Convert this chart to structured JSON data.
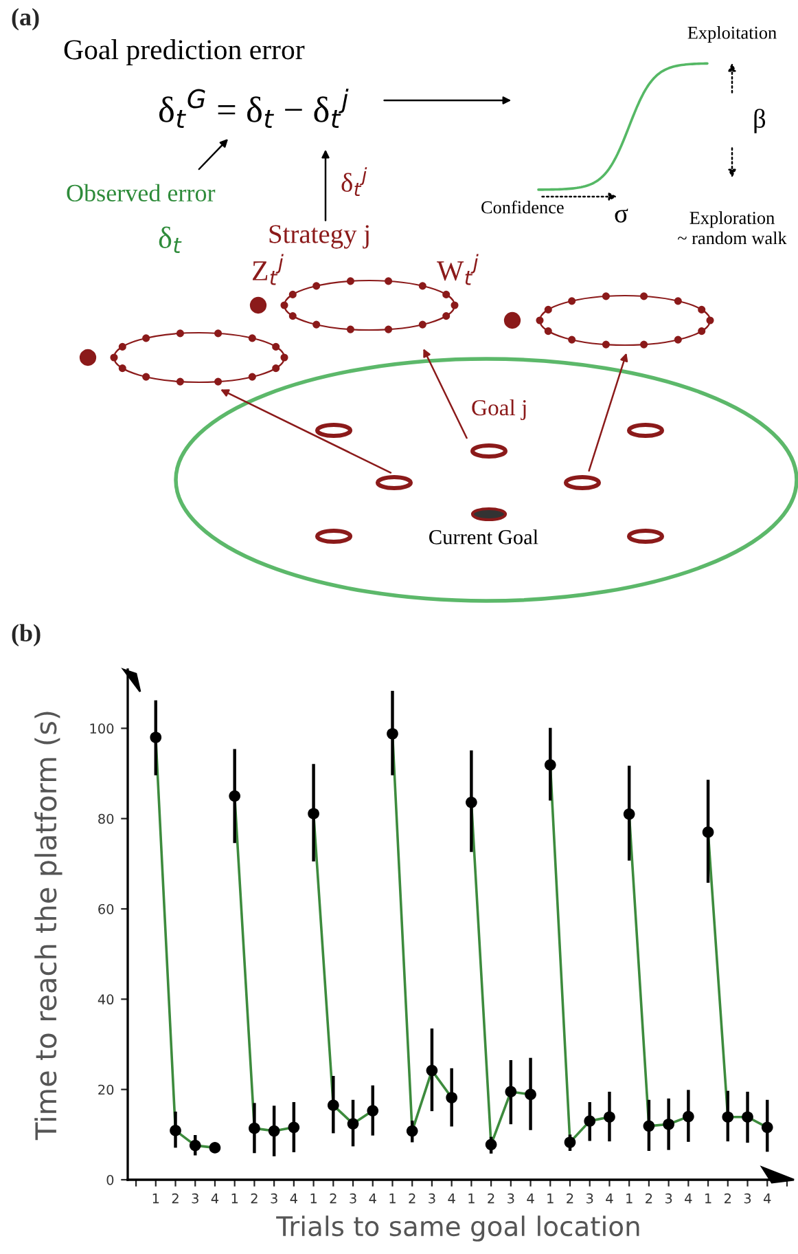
{
  "chart_data": [
    {
      "type": "other",
      "title": "(a)",
      "annotations": [
        "Goal prediction error",
        "δ$_{t}$$^{G}$ = δ$_{t}$ − δ$_{t}$$^{j}$",
        "Observed error",
        "δ$_{t}$",
        "δ$_{t}$$^{j}$",
        "Strategy j",
        "Z$_{t}$$^{j}$",
        "W$_{t}$$^{j}$",
        "Exploitation",
        "β",
        "Exploration\n~ random walk",
        "Confidence",
        "σ",
        "Goal j",
        "Current Goal"
      ]
    },
    {
      "type": "line",
      "title": "(b)",
      "xlabel": "Trials to same goal location",
      "ylabel": "Time to reach the platform (s)",
      "categories": [
        null,
        "1",
        "2",
        "3",
        "4",
        "1",
        "2",
        "3",
        "4",
        "1",
        "2",
        "3",
        "4",
        "1",
        "2",
        "3",
        "4",
        "1",
        "2",
        "3",
        "4",
        "1",
        "2",
        "3",
        "4",
        "1",
        "2",
        "3",
        "4",
        "1",
        "2",
        "3",
        "4",
        null
      ],
      "ylim": [
        0,
        113
      ],
      "yticks": [
        0,
        20,
        40,
        60,
        80,
        100
      ],
      "marker": "circle",
      "line_style": "solid",
      "series": [
        {
          "color": "#3d8b3d",
          "values": [
            null,
            98.0,
            10.9,
            7.6,
            7.1,
            null,
            null,
            null,
            null,
            null,
            null,
            null,
            null,
            null,
            null,
            null,
            null,
            null,
            null,
            null,
            null,
            null,
            null,
            null,
            null,
            null,
            null,
            null,
            null,
            null,
            null,
            null,
            null,
            null
          ],
          "errors": [
            null,
            [
              89.6,
              106.2
            ],
            [
              7.1,
              15.1
            ],
            [
              5.4,
              9.9
            ],
            [
              6.1,
              8.2
            ],
            null,
            null,
            null,
            null,
            null,
            null,
            null,
            null,
            null,
            null,
            null,
            null,
            null,
            null,
            null,
            null,
            null,
            null,
            null,
            null,
            null,
            null,
            null,
            null,
            null,
            null,
            null,
            null,
            null
          ]
        },
        {
          "color": "#3d8b3d",
          "values": [
            null,
            null,
            null,
            null,
            null,
            85.0,
            11.4,
            10.8,
            11.6,
            null,
            null,
            null,
            null,
            null,
            null,
            null,
            null,
            null,
            null,
            null,
            null,
            null,
            null,
            null,
            null,
            null,
            null,
            null,
            null,
            null,
            null,
            null,
            null,
            null
          ],
          "errors": [
            null,
            null,
            null,
            null,
            null,
            [
              74.6,
              95.4
            ],
            [
              5.9,
              17.0
            ],
            [
              5.2,
              16.4
            ],
            [
              6.1,
              17.2
            ],
            null,
            null,
            null,
            null,
            null,
            null,
            null,
            null,
            null,
            null,
            null,
            null,
            null,
            null,
            null,
            null,
            null,
            null,
            null,
            null,
            null,
            null,
            null,
            null,
            null
          ]
        },
        {
          "color": "#3d8b3d",
          "values": [
            null,
            null,
            null,
            null,
            null,
            null,
            null,
            null,
            null,
            81.1,
            16.5,
            12.4,
            15.3,
            null,
            null,
            null,
            null,
            null,
            null,
            null,
            null,
            null,
            null,
            null,
            null,
            null,
            null,
            null,
            null,
            null,
            null,
            null,
            null,
            null
          ],
          "errors": [
            null,
            null,
            null,
            null,
            null,
            null,
            null,
            null,
            null,
            [
              70.5,
              92.1
            ],
            [
              10.3,
              23.0
            ],
            [
              7.4,
              17.7
            ],
            [
              9.8,
              20.9
            ],
            null,
            null,
            null,
            null,
            null,
            null,
            null,
            null,
            null,
            null,
            null,
            null,
            null,
            null,
            null,
            null,
            null,
            null,
            null,
            null,
            null
          ]
        },
        {
          "color": "#3d8b3d",
          "values": [
            null,
            null,
            null,
            null,
            null,
            null,
            null,
            null,
            null,
            null,
            null,
            null,
            null,
            98.8,
            10.8,
            24.2,
            18.2,
            null,
            null,
            null,
            null,
            null,
            null,
            null,
            null,
            null,
            null,
            null,
            null,
            null,
            null,
            null,
            null,
            null
          ],
          "errors": [
            null,
            null,
            null,
            null,
            null,
            null,
            null,
            null,
            null,
            null,
            null,
            null,
            null,
            [
              89.6,
              108.3
            ],
            [
              8.3,
              13.1
            ],
            [
              15.2,
              33.5
            ],
            [
              11.8,
              24.7
            ],
            null,
            null,
            null,
            null,
            null,
            null,
            null,
            null,
            null,
            null,
            null,
            null,
            null,
            null,
            null,
            null,
            null
          ]
        },
        {
          "color": "#3d8b3d",
          "values": [
            null,
            null,
            null,
            null,
            null,
            null,
            null,
            null,
            null,
            null,
            null,
            null,
            null,
            null,
            null,
            null,
            null,
            83.6,
            7.8,
            19.5,
            18.9,
            null,
            null,
            null,
            null,
            null,
            null,
            null,
            null,
            null,
            null,
            null,
            null,
            null
          ],
          "errors": [
            null,
            null,
            null,
            null,
            null,
            null,
            null,
            null,
            null,
            null,
            null,
            null,
            null,
            null,
            null,
            null,
            null,
            [
              72.6,
              95.1
            ],
            [
              5.8,
              9.5
            ],
            [
              12.3,
              26.5
            ],
            [
              11.0,
              27.0
            ],
            null,
            null,
            null,
            null,
            null,
            null,
            null,
            null,
            null,
            null,
            null,
            null,
            null
          ]
        },
        {
          "color": "#3d8b3d",
          "values": [
            null,
            null,
            null,
            null,
            null,
            null,
            null,
            null,
            null,
            null,
            null,
            null,
            null,
            null,
            null,
            null,
            null,
            null,
            null,
            null,
            null,
            91.9,
            8.3,
            13.0,
            13.9,
            null,
            null,
            null,
            null,
            null,
            null,
            null,
            null,
            null
          ],
          "errors": [
            null,
            null,
            null,
            null,
            null,
            null,
            null,
            null,
            null,
            null,
            null,
            null,
            null,
            null,
            null,
            null,
            null,
            null,
            null,
            null,
            null,
            [
              84.0,
              100.1
            ],
            [
              6.4,
              10.0
            ],
            [
              8.6,
              17.2
            ],
            [
              8.5,
              19.5
            ],
            null,
            null,
            null,
            null,
            null,
            null,
            null,
            null,
            null
          ]
        },
        {
          "color": "#3d8b3d",
          "values": [
            null,
            null,
            null,
            null,
            null,
            null,
            null,
            null,
            null,
            null,
            null,
            null,
            null,
            null,
            null,
            null,
            null,
            null,
            null,
            null,
            null,
            null,
            null,
            null,
            null,
            81.0,
            11.9,
            12.3,
            14.0,
            null,
            null,
            null,
            null,
            null
          ],
          "errors": [
            null,
            null,
            null,
            null,
            null,
            null,
            null,
            null,
            null,
            null,
            null,
            null,
            null,
            null,
            null,
            null,
            null,
            null,
            null,
            null,
            null,
            null,
            null,
            null,
            null,
            [
              70.7,
              91.7
            ],
            [
              6.4,
              17.7
            ],
            [
              6.6,
              18.0
            ],
            [
              8.4,
              19.9
            ],
            null,
            null,
            null,
            null,
            null
          ]
        },
        {
          "color": "#3d8b3d",
          "values": [
            null,
            null,
            null,
            null,
            null,
            null,
            null,
            null,
            null,
            null,
            null,
            null,
            null,
            null,
            null,
            null,
            null,
            null,
            null,
            null,
            null,
            null,
            null,
            null,
            null,
            null,
            null,
            null,
            null,
            77.0,
            13.9,
            13.9,
            11.6,
            null
          ],
          "errors": [
            null,
            null,
            null,
            null,
            null,
            null,
            null,
            null,
            null,
            null,
            null,
            null,
            null,
            null,
            null,
            null,
            null,
            null,
            null,
            null,
            null,
            null,
            null,
            null,
            null,
            null,
            null,
            null,
            null,
            [
              65.8,
              88.6
            ],
            [
              8.5,
              19.7
            ],
            [
              8.2,
              19.5
            ],
            [
              6.2,
              17.7
            ],
            null
          ]
        }
      ]
    }
  ]
}
